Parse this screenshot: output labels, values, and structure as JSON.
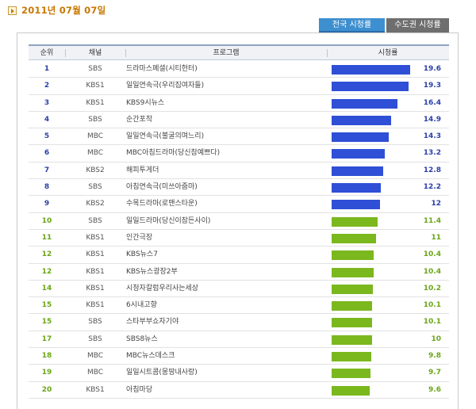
{
  "header": {
    "date": "2011년 07월 07일"
  },
  "tabs": [
    {
      "label": "전국 시청률",
      "active": true
    },
    {
      "label": "수도권 시청률",
      "active": false
    }
  ],
  "table": {
    "columns": {
      "rank": "순위",
      "channel": "채널",
      "program": "프로그램",
      "rating": "시청률"
    },
    "max_rating": 19.6,
    "colors": {
      "top": "#2f4fd6",
      "rest": "#7ab81e",
      "top_text": "#2b3fa8",
      "rest_text": "#6aa616"
    },
    "rows": [
      {
        "rank": "1",
        "channel": "SBS",
        "program": "드라마스페셜(시티헌터)",
        "rating": "19.6"
      },
      {
        "rank": "2",
        "channel": "KBS1",
        "program": "일일연속극(우리집여자들)",
        "rating": "19.3"
      },
      {
        "rank": "3",
        "channel": "KBS1",
        "program": "KBS9시뉴스",
        "rating": "16.4"
      },
      {
        "rank": "4",
        "channel": "SBS",
        "program": "순간포착",
        "rating": "14.9"
      },
      {
        "rank": "5",
        "channel": "MBC",
        "program": "일일연속극(불굴의며느리)",
        "rating": "14.3"
      },
      {
        "rank": "6",
        "channel": "MBC",
        "program": "MBC아침드라마(당신참예쁘다)",
        "rating": "13.2"
      },
      {
        "rank": "7",
        "channel": "KBS2",
        "program": "해피투게더",
        "rating": "12.8"
      },
      {
        "rank": "8",
        "channel": "SBS",
        "program": "아침연속극(미쓰아줌마)",
        "rating": "12.2"
      },
      {
        "rank": "9",
        "channel": "KBS2",
        "program": "수목드라마(로맨스타운)",
        "rating": "12"
      },
      {
        "rank": "10",
        "channel": "SBS",
        "program": "일일드라마(당신이잠든사이)",
        "rating": "11.4"
      },
      {
        "rank": "11",
        "channel": "KBS1",
        "program": "인간극장",
        "rating": "11"
      },
      {
        "rank": "12",
        "channel": "KBS1",
        "program": "KBS뉴스7",
        "rating": "10.4"
      },
      {
        "rank": "12",
        "channel": "KBS1",
        "program": "KBS뉴스광장2부",
        "rating": "10.4"
      },
      {
        "rank": "14",
        "channel": "KBS1",
        "program": "시청자칼럼우리사는세상",
        "rating": "10.2"
      },
      {
        "rank": "15",
        "channel": "KBS1",
        "program": "6시내고향",
        "rating": "10.1"
      },
      {
        "rank": "15",
        "channel": "SBS",
        "program": "스타부부쇼자기야",
        "rating": "10.1"
      },
      {
        "rank": "17",
        "channel": "SBS",
        "program": "SBS8뉴스",
        "rating": "10"
      },
      {
        "rank": "18",
        "channel": "MBC",
        "program": "MBC뉴스데스크",
        "rating": "9.8"
      },
      {
        "rank": "19",
        "channel": "MBC",
        "program": "일일시트콤(몽땅내사랑)",
        "rating": "9.7"
      },
      {
        "rank": "20",
        "channel": "KBS1",
        "program": "아침마당",
        "rating": "9.6"
      }
    ]
  }
}
